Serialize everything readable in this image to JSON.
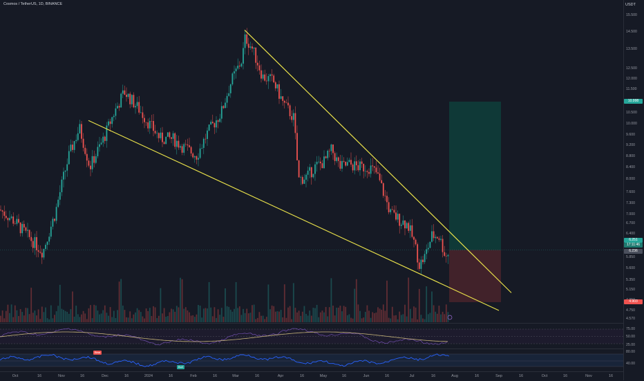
{
  "header": {
    "title": "Cosmos / TetherUS, 1D, BINANCE"
  },
  "price_axis": {
    "currency": "USDT",
    "labels": [
      "15.500",
      "14.500",
      "13.500",
      "12.500",
      "12.000",
      "11.500",
      "10.500",
      "10.000",
      "9.600",
      "9.200",
      "8.800",
      "8.400",
      "8.000",
      "7.600",
      "7.300",
      "7.000",
      "6.700",
      "6.400",
      "6.100",
      "5.850",
      "5.600",
      "5.350",
      "5.150",
      "4.950",
      "4.750",
      "4.570"
    ],
    "badges": {
      "target": "10.998",
      "current": "6.251",
      "countdown": "17:11:46",
      "low_mark": "6.236",
      "stop": "4.903"
    }
  },
  "time_axis": {
    "labels": [
      "Oct",
      "16",
      "Nov",
      "16",
      "Dec",
      "16",
      "2024",
      "16",
      "Feb",
      "16",
      "Mar",
      "16",
      "Apr",
      "16",
      "May",
      "16",
      "Jun",
      "16",
      "Jul",
      "16",
      "Aug",
      "16",
      "Sep",
      "16",
      "Oct",
      "16",
      "Nov",
      "16"
    ]
  },
  "rsi_pane": {
    "levels": [
      "75.00",
      "50.00",
      "25.00"
    ]
  },
  "osc_pane": {
    "levels": [
      "80.00",
      "40.00"
    ],
    "signals": {
      "bear": "Bear",
      "bull": "Bull"
    }
  },
  "colors": {
    "background": "#161a25",
    "bull_candle": "#26a69a",
    "bear_candle": "#ef5350",
    "trendline": "#e8e04a",
    "profit_zone": "#0f3b38",
    "loss_zone": "#43232a",
    "rsi_line": "#c9b77a",
    "osc_line": "#2962ff"
  },
  "chart_data": {
    "type": "candlestick",
    "ylim": [
      4.57,
      15.5
    ],
    "x_range": [
      "Oct",
      "Nov"
    ],
    "trendlines": "falling wedge (two converging yellow lines)",
    "position": {
      "entry": 6.251,
      "target": 10.998,
      "stop": 4.903
    },
    "key_points": [
      {
        "x": "Oct",
        "y": 6.6
      },
      {
        "x": "Nov",
        "y": 6.2
      },
      {
        "x": "Dec",
        "y": 11.0
      },
      {
        "x": "2024",
        "y": 10.0
      },
      {
        "x": "Feb",
        "y": 9.0
      },
      {
        "x": "Mar",
        "y": 14.5
      },
      {
        "x": "Apr",
        "y": 11.0
      },
      {
        "x": "May",
        "y": 9.2
      },
      {
        "x": "Jun",
        "y": 8.0
      },
      {
        "x": "Jul",
        "y": 5.9
      },
      {
        "x": "Jul 23",
        "y": 6.25
      }
    ]
  }
}
